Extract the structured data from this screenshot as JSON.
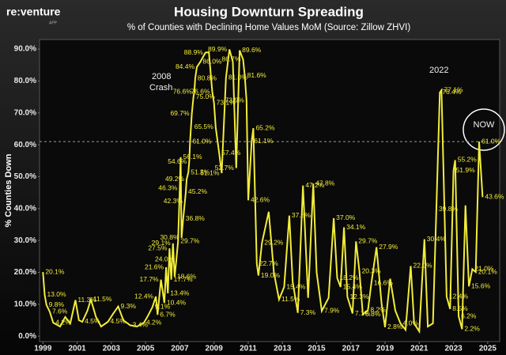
{
  "chart_data": {
    "type": "line",
    "title": "Housing Downturn Spreading",
    "subtitle": "% of Counties with Declining Home Values MoM (Source: Zillow ZHVI)",
    "logo": "re:venture",
    "logo_sub": "APP",
    "y_label": "% Counties Down",
    "annotations": [
      "2008",
      "Crash",
      "2022",
      "NOW"
    ],
    "reference_line": 61,
    "xlim": [
      1998.8,
      2025.7
    ],
    "xticks": [
      1999,
      2001,
      2003,
      2005,
      2007,
      2009,
      2011,
      2013,
      2015,
      2017,
      2019,
      2021,
      2023,
      2025
    ],
    "ylim": [
      -1.7,
      93
    ],
    "yticks": [
      {
        "value": 0,
        "label": "0.0%"
      },
      {
        "value": 10,
        "label": "10.0%"
      },
      {
        "value": 20,
        "label": "20.0%"
      },
      {
        "value": 30,
        "label": "30.0%"
      },
      {
        "value": 40,
        "label": "40.0%"
      },
      {
        "value": 50,
        "label": "50.0%"
      },
      {
        "value": 60,
        "label": "60.0%"
      },
      {
        "value": 70,
        "label": "70.0%"
      },
      {
        "value": 80,
        "label": "80.0%"
      },
      {
        "value": 90,
        "label": "90.0%"
      }
    ],
    "series": [
      {
        "name": "% Counties Down",
        "color": "#f2ec3a",
        "x": [
          1999.0,
          1999.1,
          1999.2,
          1999.4,
          1999.6,
          2000.0,
          2000.3,
          2000.6,
          2000.9,
          2001.1,
          2001.3,
          2001.6,
          2001.8,
          2002.1,
          2002.4,
          2002.8,
          2003.1,
          2003.4,
          2003.7,
          2004.1,
          2004.5,
          2004.9,
          2005.1,
          2005.4,
          2005.6,
          2005.7,
          2005.9,
          2006.1,
          2006.2,
          2006.3,
          2006.4,
          2006.5,
          2006.6,
          2006.7,
          2006.8,
          2006.9,
          2007.0,
          2007.05,
          2007.1,
          2007.2,
          2007.3,
          2007.35,
          2007.4,
          2007.5,
          2007.55,
          2007.6,
          2007.7,
          2007.8,
          2007.85,
          2007.9,
          2008.0,
          2008.2,
          2008.5,
          2008.7,
          2008.9,
          2009.0,
          2009.1,
          2009.3,
          2009.45,
          2009.7,
          2009.9,
          2010.1,
          2010.3,
          2010.5,
          2010.7,
          2010.8,
          2010.9,
          2011.0,
          2011.2,
          2011.3,
          2011.5,
          2011.6,
          2011.8,
          2012.2,
          2012.5,
          2012.8,
          2013.1,
          2013.4,
          2013.6,
          2013.9,
          2014.2,
          2014.5,
          2014.8,
          2015.0,
          2015.3,
          2015.7,
          2016.0,
          2016.2,
          2016.4,
          2016.6,
          2016.8,
          2017.1,
          2017.3,
          2017.5,
          2017.7,
          2018.0,
          2018.2,
          2018.5,
          2018.8,
          2019.0,
          2019.3,
          2019.6,
          2019.9,
          2020.2,
          2020.5,
          2020.7,
          2021.0,
          2021.3,
          2021.5,
          2021.8,
          2022.0,
          2022.2,
          2022.3,
          2022.6,
          2022.8,
          2023.0,
          2023.1,
          2023.3,
          2023.5,
          2023.7,
          2023.9,
          2024.1,
          2024.3,
          2024.5,
          2024.7
        ],
        "values": [
          20.1,
          13.0,
          9.8,
          7.6,
          4.2,
          3,
          6,
          4,
          11.3,
          5,
          4.5,
          8,
          11.5,
          6,
          3,
          4.5,
          7,
          9.3,
          5,
          3.4,
          3,
          4.2,
          6,
          9.1,
          12.4,
          6.7,
          17.7,
          10.4,
          21.6,
          13.4,
          27.5,
          17.7,
          29.1,
          18.6,
          24.0,
          29.7,
          46.3,
          56.1,
          30.8,
          36.8,
          42.3,
          45.2,
          49.2,
          51.3,
          54.6,
          61.0,
          69.7,
          75.0,
          76.6,
          80.8,
          84.4,
          86.0,
          88.9,
          89,
          76.6,
          73.1,
          65.5,
          57.4,
          51.1,
          81.0,
          89.9,
          86,
          52.7,
          89.6,
          86.7,
          81.6,
          73.9,
          42.6,
          61.1,
          65.2,
          22.7,
          19.0,
          29.2,
          39,
          20,
          11.5,
          15.4,
          37.8,
          17,
          7.3,
          47.2,
          12,
          47.8,
          20,
          7.9,
          12,
          37.0,
          18.2,
          15.4,
          34.1,
          12.3,
          7.1,
          29.7,
          20.3,
          6.8,
          8.2,
          16.6,
          27.9,
          10,
          2.8,
          18,
          8,
          4.0,
          2,
          22.0,
          4,
          1.5,
          30.4,
          3,
          4,
          39.8,
          76.4,
          77.1,
          12.4,
          8.5,
          51.9,
          55.2,
          6.2,
          2.2,
          41,
          15.6,
          21.0,
          20.1,
          61.0,
          43.6
        ],
        "value_labels": [
          "20.1%",
          "13.0%",
          "9.8%",
          "7.6%",
          "4.2%",
          null,
          null,
          null,
          "11.3%",
          null,
          "4.5%",
          null,
          "11.5%",
          null,
          null,
          "4.5%",
          null,
          "9.3%",
          null,
          "3.4%",
          null,
          "4.2%",
          null,
          "9.1%",
          "12.4%",
          "6.7%",
          "17.7%",
          "10.4%",
          "21.6%",
          "13.4%",
          "27.5%",
          "17.7%",
          "29.1%",
          "18.6%",
          "24.0%",
          "29.7%",
          "46.3%",
          "56.1%",
          "30.8%",
          "36.8%",
          "42.3%",
          "45.2%",
          "49.2%",
          "51.3%",
          "54.6%",
          "61.0%",
          "69.7%",
          "75.0%",
          "76.6%",
          "80.8%",
          "84.4%",
          "86.0%",
          "88.9%",
          null,
          "76.6%",
          "73.1%",
          "65.5%",
          "57.4%",
          "51.1%",
          "81.0%",
          "89.9%",
          null,
          "52.7%",
          "89.6%",
          "86.7%",
          "81.6%",
          "73.9%",
          "42.6%",
          "61.1%",
          "65.2%",
          "22.7%",
          "19.0%",
          "29.2%",
          null,
          null,
          "11.5%",
          "15.4%",
          "37.8%",
          null,
          "7.3%",
          "47.2%",
          null,
          "47.8%",
          null,
          "7.9%",
          null,
          "37.0%",
          "18.2%",
          "15.4%",
          "34.1%",
          "12.3%",
          "7.1%",
          "29.7%",
          "20.3%",
          "6.8%",
          "8.2%",
          "16.6%",
          "27.9%",
          null,
          "2.8%",
          null,
          null,
          "4.0%",
          null,
          "22.0%",
          null,
          null,
          "30.4%",
          null,
          null,
          "39.8%",
          "76.4%",
          "77.1%",
          "12.4%",
          "8.5%",
          "51.9%",
          "55.2%",
          "6.2%",
          "2.2%",
          null,
          "15.6%",
          "21.0%",
          "20.1%",
          "61.0%",
          "43.6%"
        ]
      }
    ]
  }
}
